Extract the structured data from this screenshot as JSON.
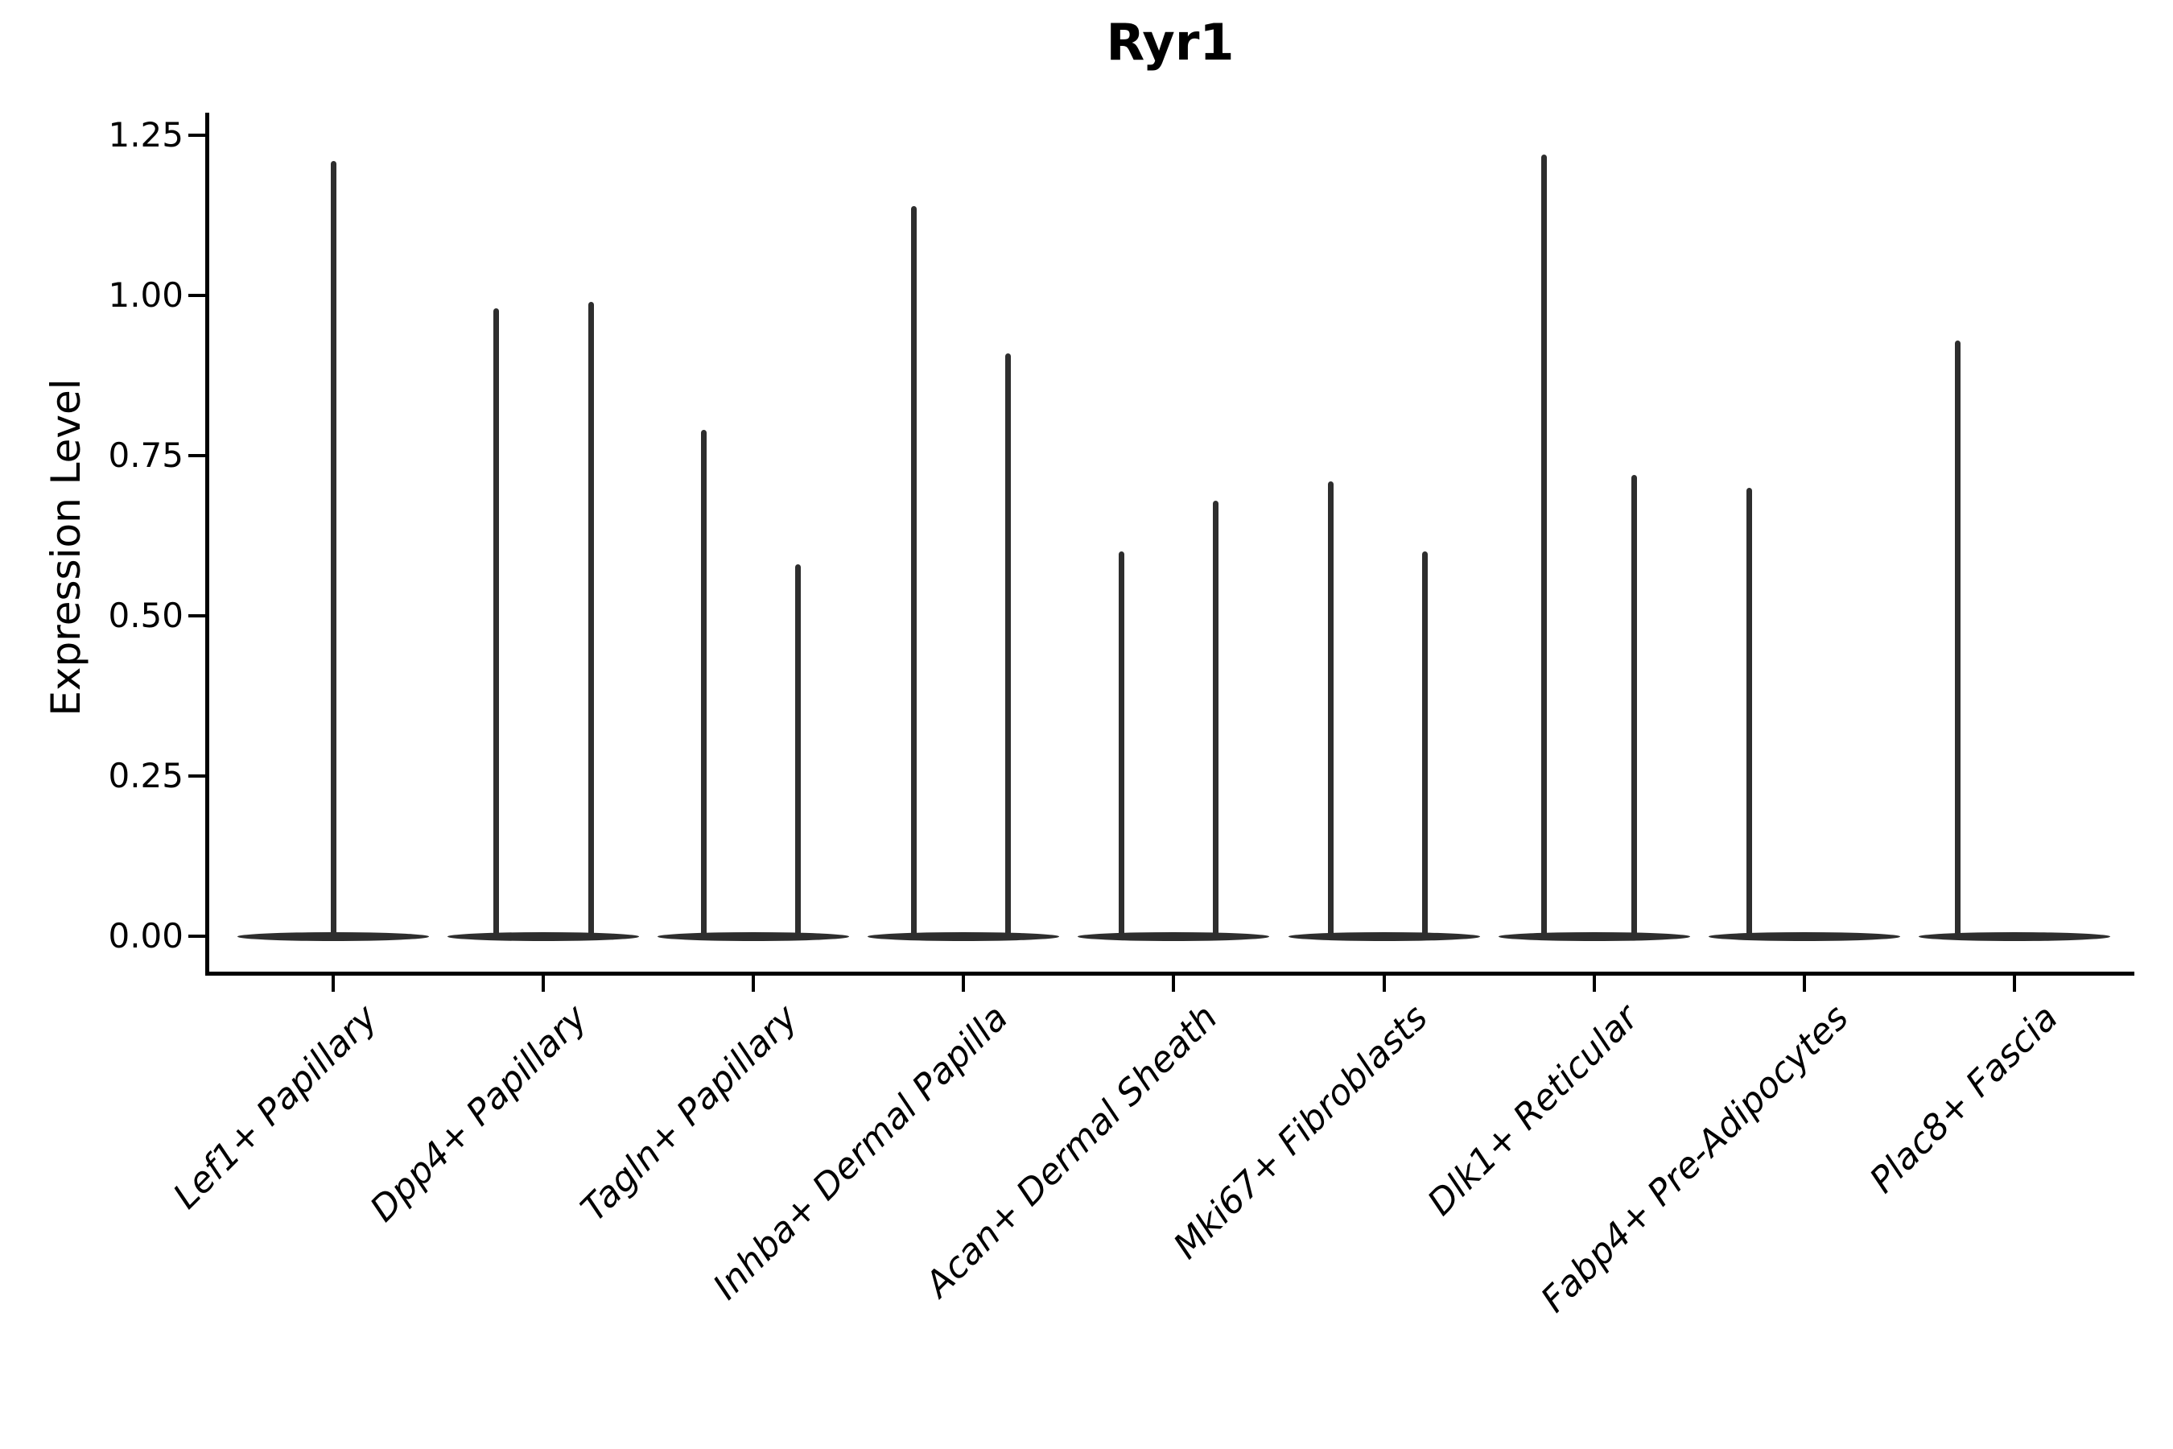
{
  "chart_data": {
    "type": "violin",
    "title": "Ryr1",
    "ylabel": "Expression Level",
    "xlabel": "",
    "grid": false,
    "legend": null,
    "ylim": [
      -0.06,
      1.29
    ],
    "yticks": [
      {
        "value": 0.0,
        "label": "0.00"
      },
      {
        "value": 0.25,
        "label": "0.25"
      },
      {
        "value": 0.5,
        "label": "0.50"
      },
      {
        "value": 0.75,
        "label": "0.75"
      },
      {
        "value": 1.0,
        "label": "1.00"
      },
      {
        "value": 1.25,
        "label": "1.25"
      }
    ],
    "categories": [
      "Lef1+ Papillary",
      "Dpp4+ Papillary",
      "Tagln+ Papillary",
      "Inhba+ Dermal Papilla",
      "Acan+ Dermal Sheath",
      "Mki67+ Fibroblasts",
      "Dlk1+ Reticular",
      "Fabp4+ Pre-Adipocytes",
      "Plac8+ Fascia"
    ],
    "violins": [
      {
        "category": "Lef1+ Papillary",
        "base_at_zero": true,
        "spikes": [
          {
            "offset": 0,
            "value": 1.21
          }
        ]
      },
      {
        "category": "Dpp4+ Papillary",
        "base_at_zero": true,
        "spikes": [
          {
            "offset": -59,
            "value": 0.98
          },
          {
            "offset": 59,
            "value": 0.99
          }
        ]
      },
      {
        "category": "Tagln+ Papillary",
        "base_at_zero": true,
        "spikes": [
          {
            "offset": -62,
            "value": 0.79
          },
          {
            "offset": 55,
            "value": 0.58
          }
        ]
      },
      {
        "category": "Inhba+ Dermal Papilla",
        "base_at_zero": true,
        "spikes": [
          {
            "offset": -62,
            "value": 1.14
          },
          {
            "offset": 55,
            "value": 0.91
          }
        ]
      },
      {
        "category": "Acan+ Dermal Sheath",
        "base_at_zero": true,
        "spikes": [
          {
            "offset": -65,
            "value": 0.6
          },
          {
            "offset": 52,
            "value": 0.68
          }
        ]
      },
      {
        "category": "Mki67+ Fibroblasts",
        "base_at_zero": true,
        "spikes": [
          {
            "offset": -66,
            "value": 0.71
          },
          {
            "offset": 51,
            "value": 0.6
          }
        ]
      },
      {
        "category": "Dlk1+ Reticular",
        "base_at_zero": true,
        "spikes": [
          {
            "offset": -62,
            "value": 1.22
          },
          {
            "offset": 50,
            "value": 0.72
          }
        ]
      },
      {
        "category": "Fabp4+ Pre-Adipocytes",
        "base_at_zero": true,
        "spikes": [
          {
            "offset": -68,
            "value": 0.7
          }
        ]
      },
      {
        "category": "Plac8+ Fascia",
        "base_at_zero": true,
        "spikes": [
          {
            "offset": -70,
            "value": 0.93
          }
        ]
      }
    ],
    "colors": {
      "violin": "#2e2e2e",
      "axis": "#000000",
      "text": "#000000",
      "background": "#ffffff"
    }
  }
}
